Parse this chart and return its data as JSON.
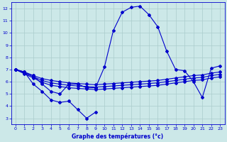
{
  "title": "Graphe des températures (°c)",
  "background_color": "#cce8e8",
  "grid_color": "#aacccc",
  "line_color": "#0000cc",
  "x_hours": [
    0,
    1,
    2,
    3,
    4,
    5,
    6,
    7,
    8,
    9,
    10,
    11,
    12,
    13,
    14,
    15,
    16,
    17,
    18,
    19,
    20,
    21,
    22,
    23
  ],
  "series_main": [
    7.0,
    6.8,
    6.5,
    5.8,
    5.2,
    5.0,
    5.8,
    5.8,
    5.5,
    5.5,
    7.2,
    10.2,
    11.7,
    12.1,
    12.2,
    11.5,
    10.5,
    8.5,
    7.0,
    6.9,
    6.0,
    4.7,
    7.1,
    7.3
  ],
  "series_min": [
    7.0,
    6.8,
    5.8,
    5.2,
    4.5,
    4.3,
    4.4,
    3.7,
    3.0,
    3.5,
    null,
    null,
    null,
    null,
    null,
    null,
    null,
    null,
    null,
    null,
    null,
    null,
    null,
    null
  ],
  "series_reg1": [
    7.0,
    6.75,
    6.5,
    6.25,
    6.1,
    6.0,
    5.9,
    5.85,
    5.8,
    5.75,
    5.8,
    5.85,
    5.9,
    5.95,
    6.0,
    6.05,
    6.1,
    6.2,
    6.3,
    6.4,
    6.5,
    6.55,
    6.7,
    6.8
  ],
  "series_reg2": [
    7.0,
    6.7,
    6.4,
    6.1,
    5.9,
    5.8,
    5.7,
    5.65,
    5.6,
    5.55,
    5.6,
    5.65,
    5.7,
    5.75,
    5.8,
    5.85,
    5.9,
    6.0,
    6.1,
    6.2,
    6.3,
    6.35,
    6.5,
    6.6
  ],
  "series_reg3": [
    7.0,
    6.65,
    6.3,
    5.95,
    5.7,
    5.6,
    5.5,
    5.45,
    5.4,
    5.35,
    5.4,
    5.45,
    5.5,
    5.55,
    5.6,
    5.65,
    5.7,
    5.8,
    5.9,
    6.0,
    6.1,
    6.15,
    6.3,
    6.4
  ],
  "ylim": [
    2.5,
    12.5
  ],
  "yticks": [
    3,
    4,
    5,
    6,
    7,
    8,
    9,
    10,
    11,
    12
  ],
  "xlim": [
    -0.5,
    23.5
  ],
  "xticks": [
    0,
    1,
    2,
    3,
    4,
    5,
    6,
    7,
    8,
    9,
    10,
    11,
    12,
    13,
    14,
    15,
    16,
    17,
    18,
    19,
    20,
    21,
    22,
    23
  ]
}
